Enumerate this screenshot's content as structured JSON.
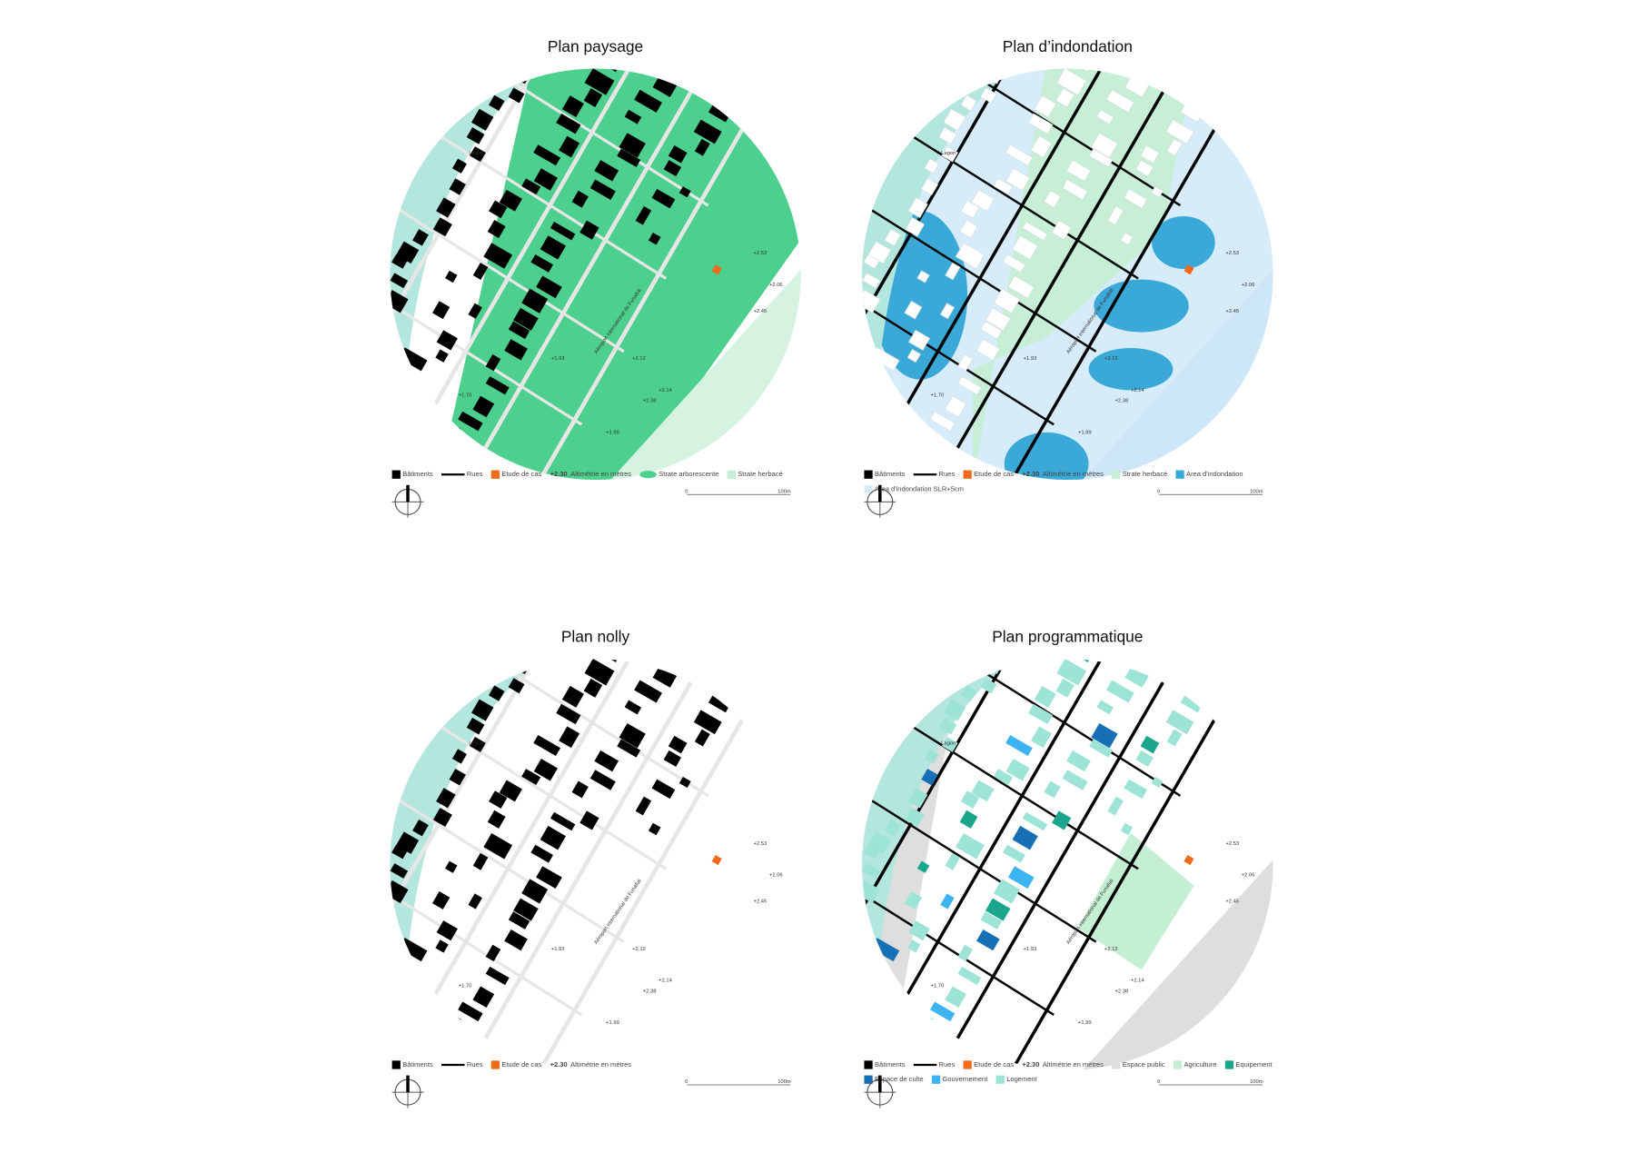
{
  "panels": [
    {
      "title": "Plan paysage",
      "kind": "paysage",
      "legend": [
        [
          {
            "label": "Bâtiments"
          },
          {
            "label": "Rues"
          },
          {
            "label": "Etude de cas"
          },
          {
            "sample": "+2.30",
            "label": "Altimétrie en mètres"
          },
          {
            "label": "Strate arborescente"
          },
          {
            "label": "Strate herbacé"
          }
        ]
      ]
    },
    {
      "title": "Plan d’indondation",
      "kind": "inondation",
      "legend": [
        [
          {
            "label": "Bâtiments"
          },
          {
            "label": "Rues"
          },
          {
            "label": "Etude de cas"
          },
          {
            "sample": "+2.30",
            "label": "Altimétrie en mètres"
          },
          {
            "label": "Strate herbacé"
          },
          {
            "label": "Area d'indondation"
          }
        ],
        [
          {
            "label": "Area d'indondation SLR+5cm"
          }
        ]
      ]
    },
    {
      "title": "Plan nolly",
      "kind": "nolly",
      "legend": [
        [
          {
            "label": "Bâtiments"
          },
          {
            "label": "Rues"
          },
          {
            "label": "Etude de cas"
          },
          {
            "sample": "+2.30",
            "label": "Altimétrie en mètres"
          }
        ]
      ]
    },
    {
      "title": "Plan programmatique",
      "kind": "programme",
      "legend": [
        [
          {
            "label": "Bâtiments"
          },
          {
            "label": "Rues"
          },
          {
            "label": "Etude de cas"
          },
          {
            "sample": "+2.30",
            "label": "Altimétrie en mètres"
          },
          {
            "label": "Espace public"
          },
          {
            "label": "Agriculture"
          },
          {
            "label": "Equipement"
          }
        ],
        [
          {
            "label": "Espace de culte"
          },
          {
            "label": "Gouvernement"
          },
          {
            "label": "Logement"
          }
        ]
      ]
    }
  ],
  "map_labels": [
    "Lagon",
    "Aéroport international de Funafuti",
    "+2.53",
    "+2.06",
    "+2.45",
    "+2.12",
    "+1.93",
    "+2.38",
    "+2.14",
    "+1.99",
    "+1.70"
  ],
  "scale": [
    "0",
    "100m"
  ]
}
